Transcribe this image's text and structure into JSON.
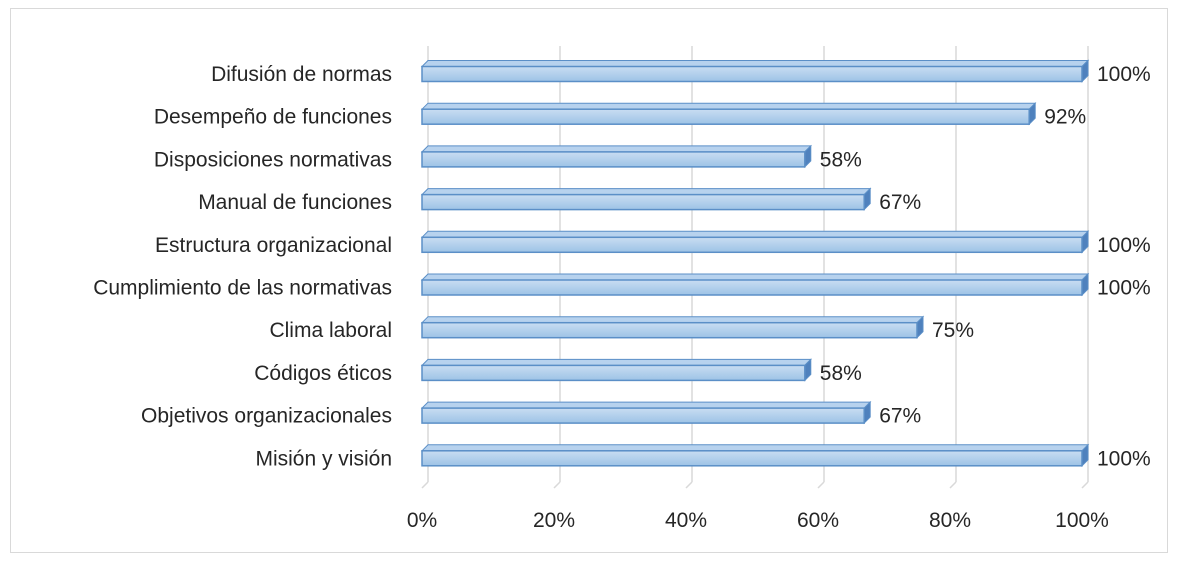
{
  "chart_data": {
    "type": "bar",
    "orientation": "horizontal",
    "style": "3d",
    "bar_color": "#9dc3e6",
    "bar_edge_color": "#5b8fc7",
    "grid": true,
    "categories": [
      "Difusión de normas",
      "Desempeño de funciones",
      "Disposiciones normativas",
      "Manual de funciones",
      "Estructura organizacional",
      "Cumplimiento de las normativas",
      "Clima laboral",
      "Códigos éticos",
      "Objetivos organizacionales",
      "Misión y visión"
    ],
    "values": [
      100,
      92,
      58,
      67,
      100,
      100,
      75,
      58,
      67,
      100
    ],
    "data_labels": [
      "100%",
      "92%",
      "58%",
      "67%",
      "100%",
      "100%",
      "75%",
      "58%",
      "67%",
      "100%"
    ],
    "xlim": [
      0,
      100
    ],
    "x_ticks": [
      0,
      20,
      40,
      60,
      80,
      100
    ],
    "x_tick_labels": [
      "0%",
      "20%",
      "40%",
      "60%",
      "80%",
      "100%"
    ],
    "title": "",
    "xlabel": "",
    "ylabel": ""
  }
}
